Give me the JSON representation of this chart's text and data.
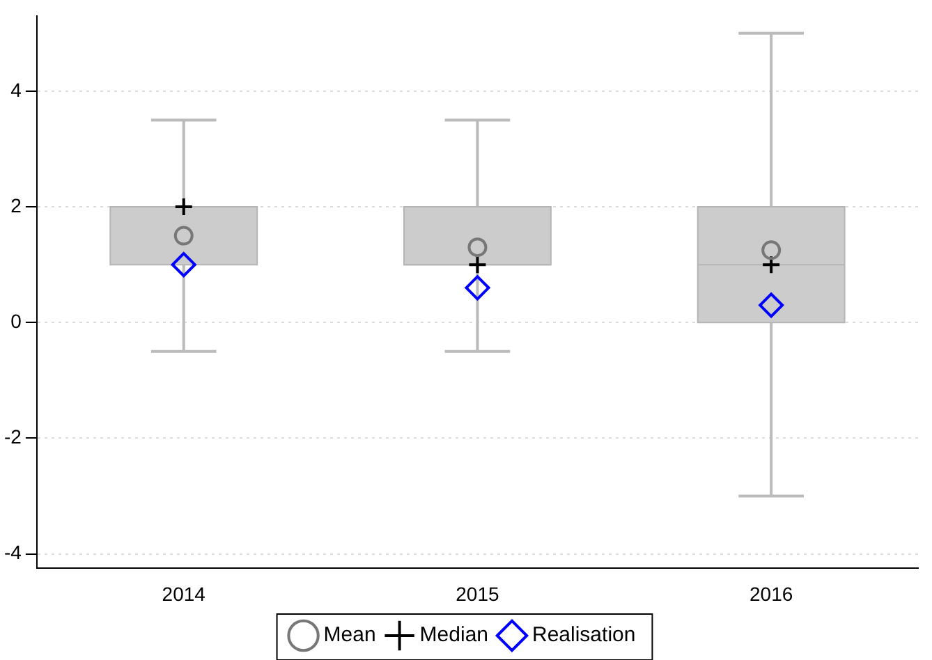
{
  "chart_data": {
    "type": "box",
    "categories": [
      "2014",
      "2015",
      "2016"
    ],
    "color": "#cccccc",
    "boxes": [
      {
        "low": -0.5,
        "q1": 1,
        "median": 2,
        "q3": 2,
        "high": 3.5
      },
      {
        "low": -0.5,
        "q1": 1,
        "median": 1,
        "q3": 2,
        "high": 3.5
      },
      {
        "low": -3,
        "q1": 0,
        "median": 1,
        "q3": 2,
        "high": 5
      }
    ],
    "series": [
      {
        "name": "Mean",
        "type": "scatter",
        "marker": "circle",
        "color": "#777777",
        "values": [
          1.5,
          1.3,
          1.25
        ]
      },
      {
        "name": "Median",
        "type": "scatter",
        "marker": "cross",
        "color": "#000000",
        "values": [
          2,
          1,
          1
        ]
      },
      {
        "name": "Realisation",
        "type": "scatter",
        "marker": "diamond",
        "color": "#0000ff",
        "values": [
          1,
          0.6,
          0.3
        ]
      }
    ],
    "ylim": [
      -4.25,
      5.3
    ],
    "yticks": [
      -4,
      -2,
      0,
      2,
      4
    ],
    "grid": "y",
    "legend": "bottom"
  }
}
